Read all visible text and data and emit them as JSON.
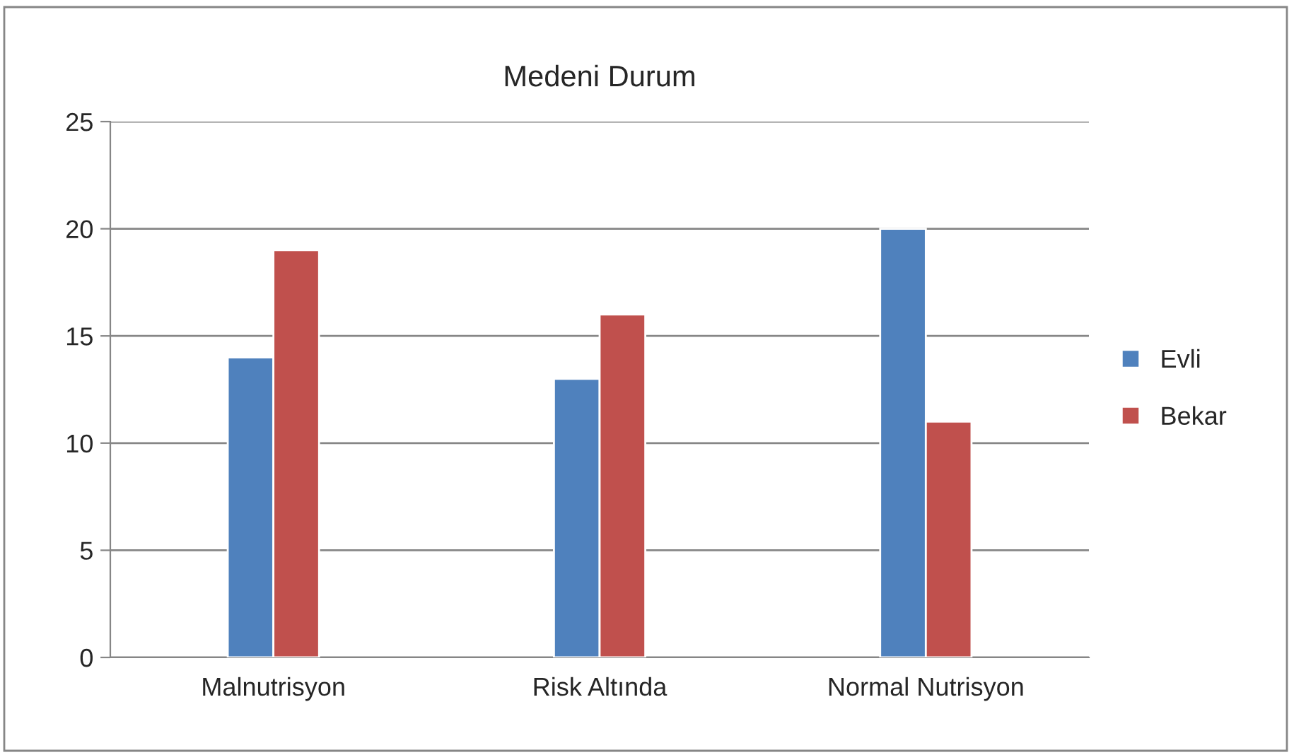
{
  "chart_data": {
    "type": "bar",
    "title": "Medeni Durum",
    "categories": [
      "Malnutrisyon",
      "Risk Altında",
      "Normal Nutrisyon"
    ],
    "series": [
      {
        "name": "Evli",
        "color": "#4f81bd",
        "values": [
          14,
          13,
          20
        ]
      },
      {
        "name": "Bekar",
        "color": "#c0504d",
        "values": [
          19,
          16,
          11
        ]
      }
    ],
    "ylim": [
      0,
      25
    ],
    "yticks": [
      0,
      5,
      10,
      15,
      20,
      25
    ],
    "grid": "y",
    "legend": "right"
  }
}
